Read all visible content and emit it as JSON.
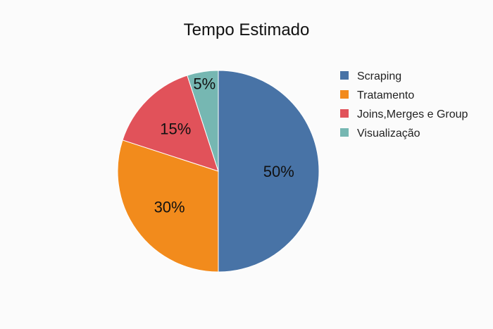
{
  "chart_data": {
    "type": "pie",
    "title": "Tempo Estimado",
    "labels": [
      "Scraping",
      "Tratamento",
      "Joins,Merges e Group",
      "Visualização"
    ],
    "values": [
      50,
      30,
      15,
      5
    ],
    "value_labels": [
      "50%",
      "30%",
      "15%",
      "5%"
    ],
    "colors": [
      "#4873a6",
      "#f28b1c",
      "#e1525a",
      "#76b7b2"
    ],
    "legend_position": "right"
  }
}
